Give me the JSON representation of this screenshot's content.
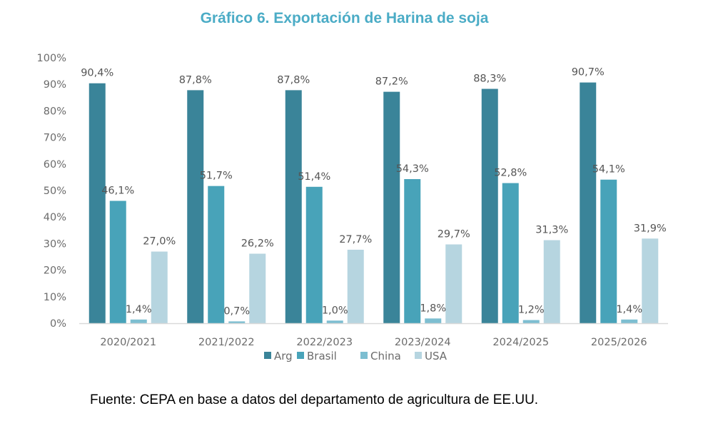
{
  "title": "Gráfico 6. Exportación de Harina de soja",
  "source": "Fuente: CEPA en base a datos del departamento de agricultura de EE.UU.",
  "chart_data": {
    "type": "bar",
    "title": "Gráfico 6. Exportación de Harina de soja",
    "xlabel": "",
    "ylabel": "",
    "categories": [
      "2020/2021",
      "2021/2022",
      "2022/2023",
      "2023/2024",
      "2024/2025",
      "2025/2026"
    ],
    "series": [
      {
        "name": "Arg",
        "color": "#3A8499",
        "values": [
          90.4,
          87.8,
          87.8,
          87.2,
          88.3,
          90.7
        ],
        "labels": [
          "90,4%",
          "87,8%",
          "87,8%",
          "87,2%",
          "88,3%",
          "90,7%"
        ]
      },
      {
        "name": "Brasil",
        "color": "#48A3B9",
        "values": [
          46.1,
          51.7,
          51.4,
          54.3,
          52.8,
          54.1
        ],
        "labels": [
          "46,1%",
          "51,7%",
          "51,4%",
          "54,3%",
          "52,8%",
          "54,1%"
        ]
      },
      {
        "name": "China",
        "color": "#7DBED1",
        "values": [
          1.4,
          0.7,
          1.0,
          1.8,
          1.2,
          1.4
        ],
        "labels": [
          "1,4%",
          "0,7%",
          "1,0%",
          "1,8%",
          "1,2%",
          "1,4%"
        ]
      },
      {
        "name": "USA",
        "color": "#B6D5E0",
        "values": [
          27.0,
          26.2,
          27.7,
          29.7,
          31.3,
          31.9
        ],
        "labels": [
          "27,0%",
          "26,2%",
          "27,7%",
          "29,7%",
          "31,3%",
          "31,9%"
        ]
      }
    ],
    "yticks": [
      "0%",
      "10%",
      "20%",
      "30%",
      "40%",
      "50%",
      "60%",
      "70%",
      "80%",
      "90%",
      "100%"
    ],
    "ylim": [
      0,
      100
    ],
    "grid": false,
    "legend": "bottom",
    "axis_color": "#d9d9d9"
  }
}
